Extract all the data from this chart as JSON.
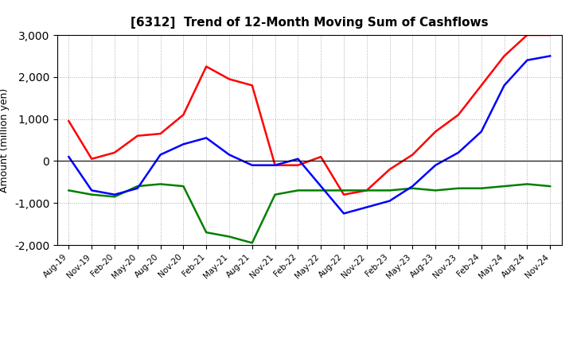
{
  "title": "[6312]  Trend of 12-Month Moving Sum of Cashflows",
  "ylabel": "Amount (million yen)",
  "xlabels": [
    "Aug-19",
    "Nov-19",
    "Feb-20",
    "May-20",
    "Aug-20",
    "Nov-20",
    "Feb-21",
    "May-21",
    "Aug-21",
    "Nov-21",
    "Feb-22",
    "May-22",
    "Aug-22",
    "Nov-22",
    "Feb-23",
    "May-23",
    "Aug-23",
    "Nov-23",
    "Feb-24",
    "May-24",
    "Aug-24",
    "Nov-24"
  ],
  "operating": [
    950,
    50,
    200,
    600,
    650,
    1100,
    2250,
    1950,
    1800,
    -100,
    -100,
    100,
    -800,
    -700,
    -200,
    150,
    700,
    1100,
    1800,
    2500,
    3000,
    3000
  ],
  "investing": [
    -700,
    -800,
    -850,
    -600,
    -550,
    -600,
    -1700,
    -1800,
    -1950,
    -800,
    -700,
    -700,
    -700,
    -700,
    -700,
    -650,
    -700,
    -650,
    -650,
    -600,
    -550,
    -600
  ],
  "free": [
    100,
    -700,
    -800,
    -650,
    150,
    400,
    550,
    150,
    -100,
    -100,
    50,
    -600,
    -1250,
    -1100,
    -950,
    -600,
    -100,
    200,
    700,
    1800,
    2400,
    2500
  ],
  "operating_color": "#ff0000",
  "investing_color": "#008000",
  "free_color": "#0000ff",
  "ylim": [
    -2000,
    3000
  ],
  "yticks": [
    -2000,
    -1000,
    0,
    1000,
    2000,
    3000
  ],
  "bg_color": "#ffffff",
  "grid_color": "#aaaaaa"
}
